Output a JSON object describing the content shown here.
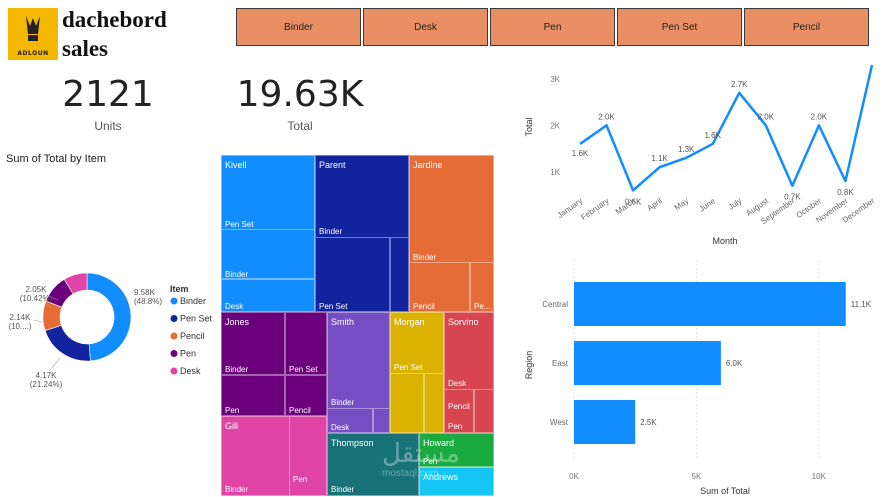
{
  "header": {
    "logo_text": "ADLOUN",
    "title_line1": "dachebord",
    "title_line2": "sales"
  },
  "slicer": [
    "Binder",
    "Desk",
    "Pen",
    "Pen Set",
    "Pencil"
  ],
  "kpis": [
    {
      "value": "2121",
      "label": "Units"
    },
    {
      "value": "19.63K",
      "label": "Total"
    }
  ],
  "donut": {
    "title": "Sum of Total by Item",
    "legend_title": "Item",
    "items": [
      {
        "name": "Binder",
        "value": 9.58,
        "label": "9.58K",
        "pct": "(48.8%)",
        "color": "#118dff"
      },
      {
        "name": "Pen Set",
        "value": 4.17,
        "label": "4.17K",
        "pct": "(21.24%)",
        "color": "#12239e"
      },
      {
        "name": "Pencil",
        "value": 2.14,
        "label": "2.14K",
        "pct": "(10....)",
        "color": "#e66c37"
      },
      {
        "name": "Pen",
        "value": 2.05,
        "label": "2.05K",
        "pct": "(10.42%)",
        "color": "#6b007b"
      },
      {
        "name": "Desk",
        "value": 1.7,
        "label": "",
        "pct": "",
        "color": "#e044a7"
      }
    ]
  },
  "treemap": {
    "rep_colors": {
      "Kivell": "#118dff",
      "Parent": "#12239e",
      "Jardine": "#e66c37",
      "Jones": "#6b007b",
      "Smith": "#744ec2",
      "Morgan": "#d9b300",
      "Sorvino": "#d64550",
      "Gill": "#e044a7",
      "Thompson": "#197278",
      "Howard": "#1aab40",
      "Andrews": "#15c6f4"
    },
    "reps": [
      "Kivell",
      "Parent",
      "Jardine",
      "Jones",
      "Smith",
      "Morgan",
      "Sorvino",
      "Gill",
      "Thompson",
      "Howard",
      "Andrews"
    ],
    "items": [
      "Pen Set",
      "Binder",
      "Desk",
      "Pencil",
      "Pe...",
      "Pen"
    ]
  },
  "line_chart": {
    "ylabel": "Total",
    "xlabel": "Month",
    "yticks": [
      "1K",
      "2K",
      "3K"
    ],
    "months": [
      "January",
      "February",
      "March",
      "April",
      "May",
      "June",
      "July",
      "August",
      "September",
      "October",
      "November",
      "December"
    ],
    "labels": [
      "1.6K",
      "2.0K",
      "0.6K",
      "1.1K",
      "1.3K",
      "1.6K",
      "2.7K",
      "2.0K",
      "0.7K",
      "2.0K",
      "0.8K",
      "3.3K"
    ]
  },
  "bar_chart": {
    "ylabel": "Region",
    "xlabel": "Sum of Total",
    "xticks": [
      "0K",
      "5K",
      "10K"
    ],
    "regions": [
      "Central",
      "East",
      "West"
    ],
    "labels": [
      "11.1K",
      "6.0K",
      "2.5K"
    ]
  },
  "watermark": {
    "text1": "مستقل",
    "text2": "mostaql.com"
  },
  "chart_data": [
    {
      "type": "pie",
      "title": "Sum of Total by Item",
      "categories": [
        "Binder",
        "Pen Set",
        "Pencil",
        "Pen",
        "Desk"
      ],
      "values": [
        9.58,
        4.17,
        2.14,
        2.05,
        1.7
      ],
      "units": "K",
      "legend": "right"
    },
    {
      "type": "line",
      "xlabel": "Month",
      "ylabel": "Total",
      "x": [
        "January",
        "February",
        "March",
        "April",
        "May",
        "June",
        "July",
        "August",
        "September",
        "October",
        "November",
        "December"
      ],
      "y": [
        1.6,
        2.0,
        0.6,
        1.1,
        1.3,
        1.6,
        2.7,
        2.0,
        0.7,
        2.0,
        0.8,
        3.3
      ],
      "units": "K",
      "ylim": [
        0.5,
        3.3
      ]
    },
    {
      "type": "bar",
      "orientation": "horizontal",
      "xlabel": "Sum of Total",
      "ylabel": "Region",
      "categories": [
        "Central",
        "East",
        "West"
      ],
      "values": [
        11.1,
        6.0,
        2.5
      ],
      "units": "K",
      "xlim": [
        0,
        12.5
      ]
    },
    {
      "type": "treemap",
      "categories": [
        "Kivell",
        "Parent",
        "Jardine",
        "Jones",
        "Smith",
        "Morgan",
        "Sorvino",
        "Gill",
        "Thompson",
        "Howard",
        "Andrews"
      ]
    }
  ]
}
